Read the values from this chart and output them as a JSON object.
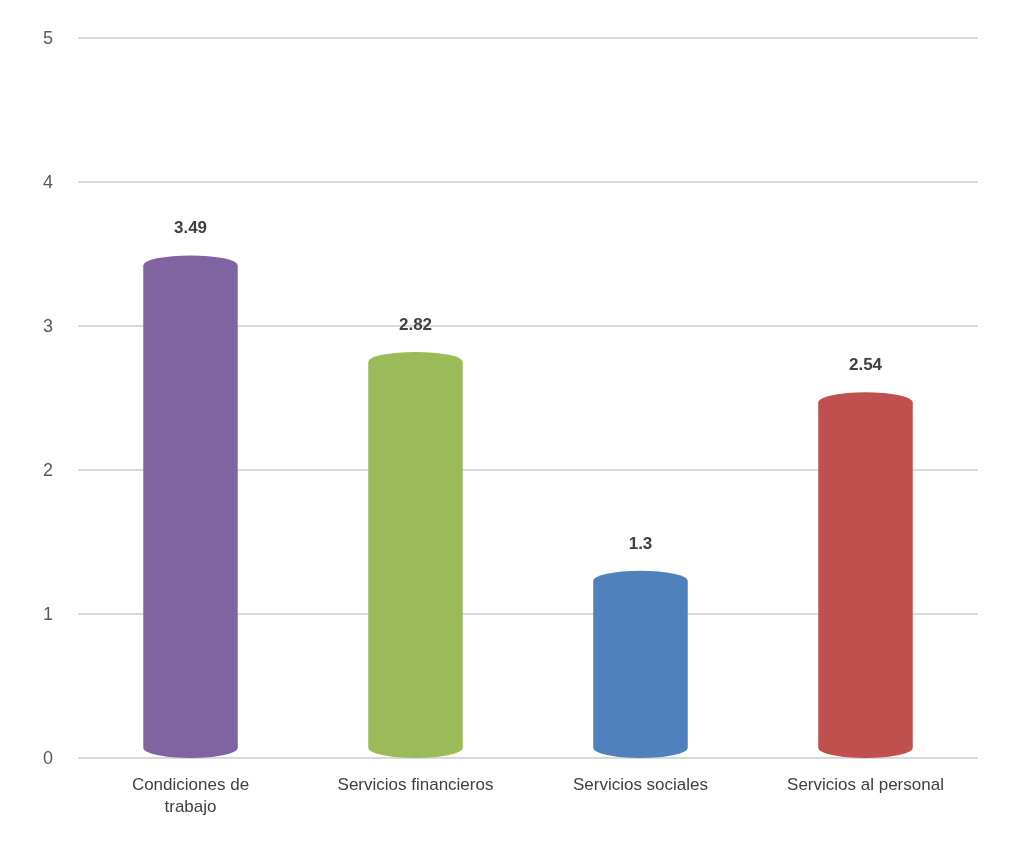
{
  "chart_data": {
    "type": "bar",
    "categories": [
      "Condiciones de trabajo",
      "Servicios financieros",
      "Servicios sociales",
      "Servicios al personal"
    ],
    "values": [
      3.49,
      2.82,
      1.3,
      2.54
    ],
    "colors": [
      "#8064a2",
      "#9bbb59",
      "#4f81bd",
      "#c0504d"
    ],
    "ylim": [
      0,
      5
    ],
    "yticks": [
      0,
      1,
      2,
      3,
      4,
      5
    ],
    "grid": "y",
    "data_labels": true
  }
}
